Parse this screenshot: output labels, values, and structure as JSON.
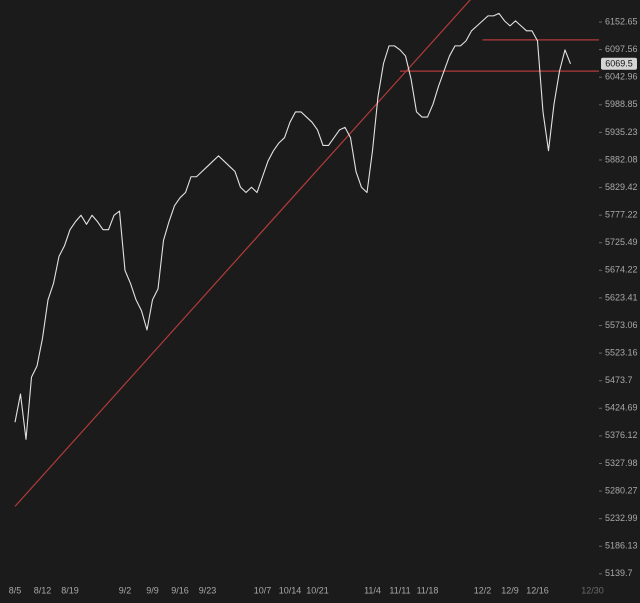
{
  "chart_data": {
    "type": "line",
    "log_scale": true,
    "background": "#1b1b1b",
    "categories": [
      "8/5",
      null,
      null,
      null,
      null,
      "8/12",
      null,
      null,
      null,
      null,
      "8/19",
      null,
      null,
      null,
      null,
      null,
      null,
      null,
      null,
      null,
      "9/2",
      null,
      null,
      null,
      null,
      "9/9",
      null,
      null,
      null,
      null,
      "9/16",
      null,
      null,
      null,
      null,
      "9/23",
      null,
      null,
      null,
      null,
      null,
      null,
      null,
      null,
      null,
      "10/7",
      null,
      null,
      null,
      null,
      "10/14",
      null,
      null,
      null,
      null,
      "10/21",
      null,
      null,
      null,
      null,
      null,
      null,
      null,
      null,
      null,
      "11/4",
      null,
      null,
      null,
      null,
      "11/11",
      null,
      null,
      null,
      null,
      "11/18",
      null,
      null,
      null,
      null,
      null,
      null,
      null,
      null,
      null,
      "12/2",
      null,
      null,
      null,
      null,
      "12/9",
      null,
      null,
      null,
      null,
      "12/16",
      null,
      null,
      null,
      null,
      null,
      null,
      null,
      null,
      null,
      "12/30"
    ],
    "series": [
      {
        "color": "#e2e2e2",
        "values": [
          5400,
          5450,
          5370,
          5480,
          5500,
          5550,
          5620,
          5650,
          5700,
          5720,
          5750,
          5765,
          5777,
          5760,
          5777,
          5765,
          5750,
          5750,
          5777,
          5785,
          5674,
          5650,
          5620,
          5600,
          5565,
          5620,
          5640,
          5730,
          5765,
          5795,
          5810,
          5820,
          5850,
          5850,
          5860,
          5870,
          5880,
          5890,
          5880,
          5870,
          5860,
          5830,
          5820,
          5830,
          5820,
          5850,
          5880,
          5900,
          5915,
          5925,
          5955,
          5975,
          5975,
          5965,
          5955,
          5940,
          5910,
          5910,
          5925,
          5940,
          5945,
          5925,
          5860,
          5830,
          5820,
          5900,
          6005,
          6070,
          6105,
          6105,
          6097,
          6085,
          6040,
          5975,
          5965,
          5965,
          5990,
          6025,
          6055,
          6085,
          6105,
          6105,
          6115,
          6135,
          6145,
          6155,
          6165,
          6165,
          6170,
          6155,
          6145,
          6155,
          6145,
          6135,
          6135,
          6115,
          5975,
          5900,
          5990,
          6055,
          6097,
          6069.5,
          null,
          null,
          null,
          null
        ]
      }
    ],
    "last_price": 6069.5,
    "line_color": "#b23b3b",
    "trendline": {
      "x": [
        "8/5",
        "12/2"
      ],
      "values": [
        5254,
        6225
      ]
    },
    "reference_lines": [
      {
        "value": 6117,
        "from": "12/2"
      },
      {
        "value": 6055,
        "from": "11/11"
      }
    ],
    "ylim": [
      5121,
      6197
    ],
    "yticks": [
      6152.65,
      6097.56,
      6042.96,
      5988.85,
      5935.23,
      5882.08,
      5829.42,
      5777.22,
      5725.49,
      5674.22,
      5623.41,
      5573.06,
      5523.16,
      5473.7,
      5424.69,
      5376.12,
      5327.98,
      5280.27,
      5232.99,
      5186.13,
      5139.7
    ]
  }
}
